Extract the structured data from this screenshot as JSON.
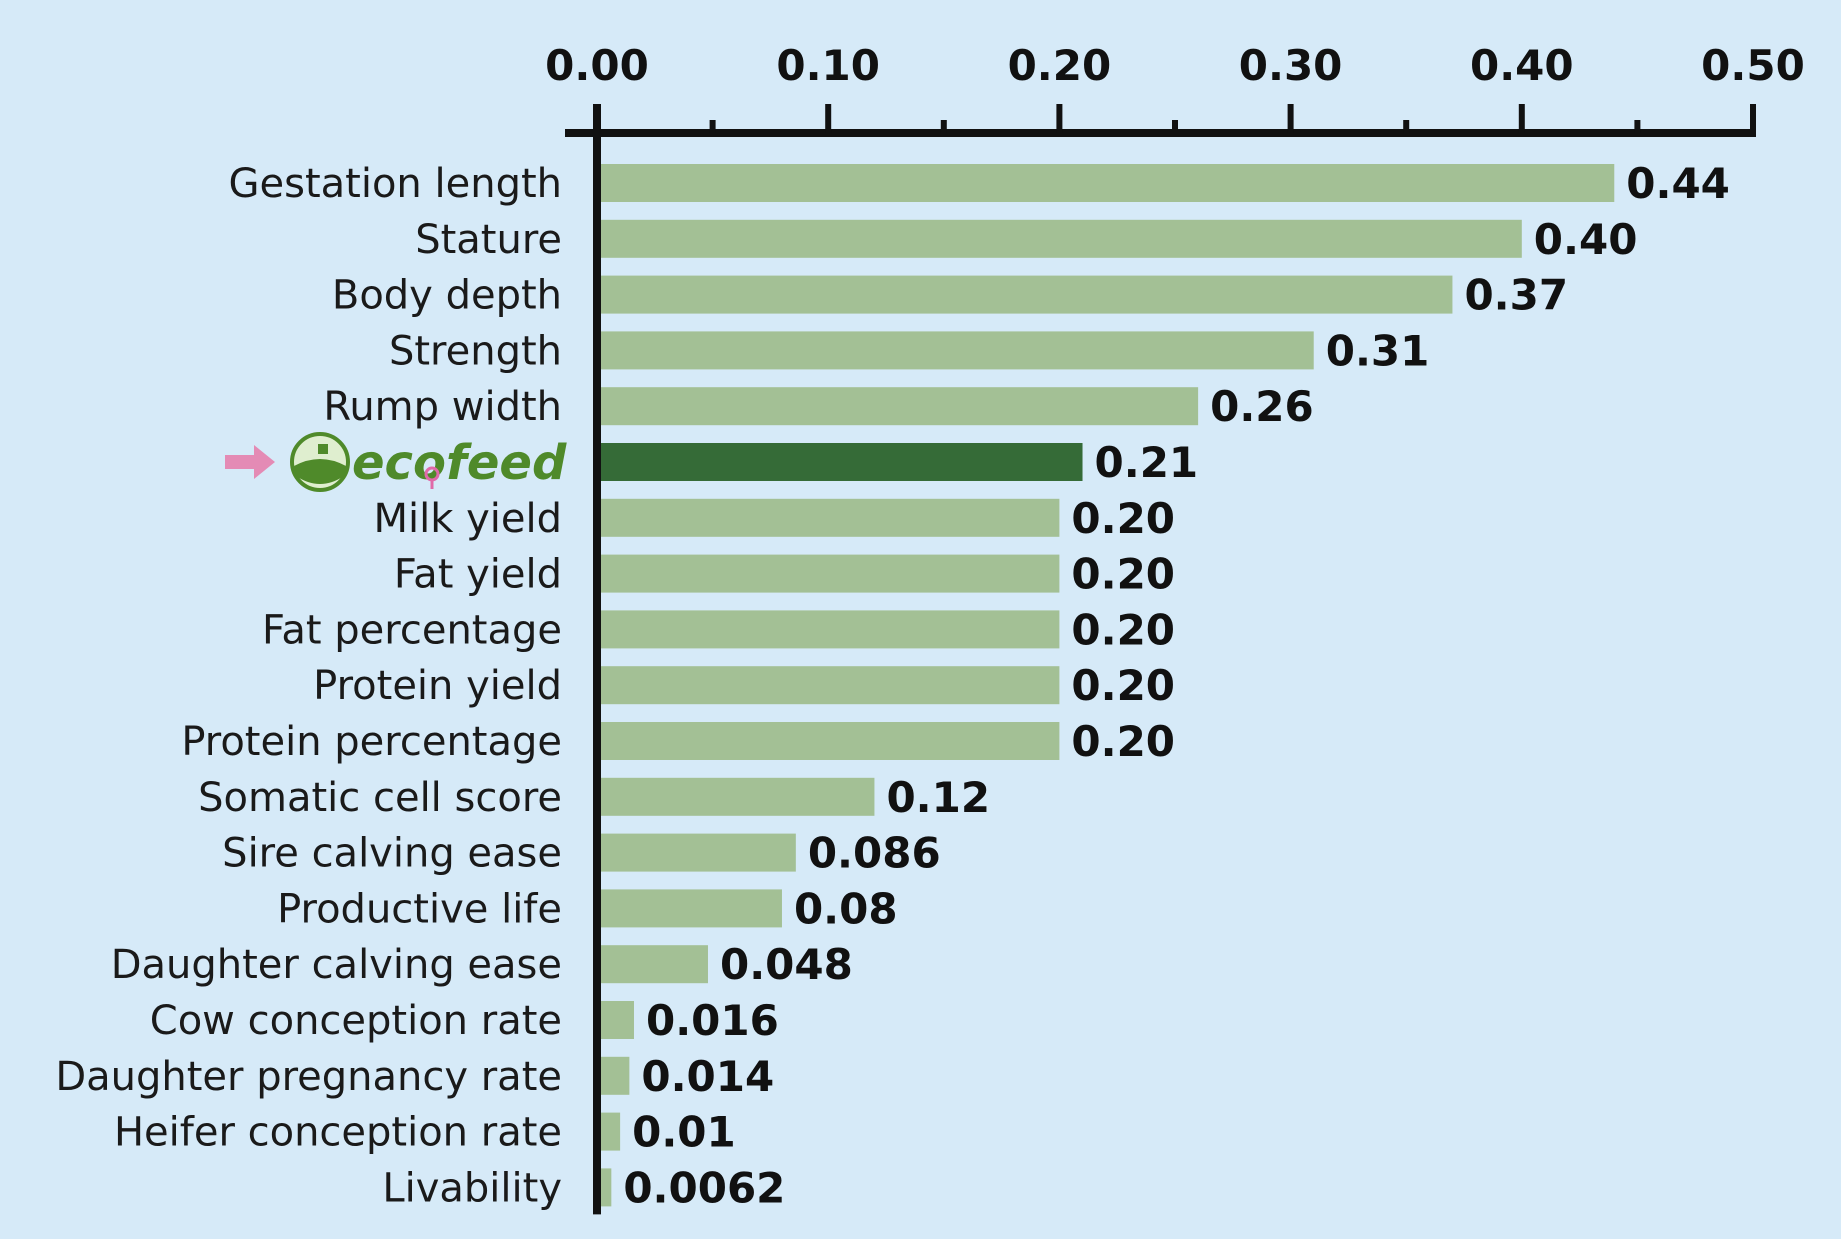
{
  "chart_data": {
    "type": "bar",
    "orientation": "horizontal",
    "categories": [
      "Gestation length",
      "Stature",
      "Body depth",
      "Strength",
      "Rump width",
      "ecofeed",
      "Milk yield",
      "Fat yield",
      "Fat percentage",
      "Protein yield",
      "Protein percentage",
      "Somatic cell score",
      "Sire calving ease",
      "Productive life",
      "Daughter calving ease",
      "Cow conception rate",
      "Daughter pregnancy rate",
      "Heifer conception rate",
      "Livability"
    ],
    "values": [
      0.44,
      0.4,
      0.37,
      0.31,
      0.26,
      0.21,
      0.2,
      0.2,
      0.2,
      0.2,
      0.2,
      0.12,
      0.086,
      0.08,
      0.048,
      0.016,
      0.014,
      0.01,
      0.0062
    ],
    "value_labels": [
      "0.44",
      "0.40",
      "0.37",
      "0.31",
      "0.26",
      "0.21",
      "0.20",
      "0.20",
      "0.20",
      "0.20",
      "0.20",
      "0.12",
      "0.086",
      "0.08",
      "0.048",
      "0.016",
      "0.014",
      "0.01",
      "0.0062"
    ],
    "highlight_index": 5,
    "highlight_logo": "ecofeed",
    "highlight_marker": "pink-arrow-icon",
    "xlim": [
      0,
      0.5
    ],
    "x_axis_position": "top",
    "ticks": [
      0.0,
      0.1,
      0.2,
      0.3,
      0.4,
      0.5
    ],
    "tick_labels": [
      "0.00",
      "0.10",
      "0.20",
      "0.30",
      "0.40",
      "0.50"
    ],
    "minor_ticks": [
      0.05,
      0.15,
      0.25,
      0.35,
      0.45
    ],
    "grid": false,
    "title": "",
    "xlabel": "",
    "ylabel": "",
    "colors": {
      "background": "#d6eaf8",
      "bar": "#a3c095",
      "highlight_bar": "#356b37",
      "axis": "#111111",
      "arrow": "#e48bb5",
      "logo_green": "#4f8a2a",
      "logo_pink": "#e06aa8"
    }
  }
}
